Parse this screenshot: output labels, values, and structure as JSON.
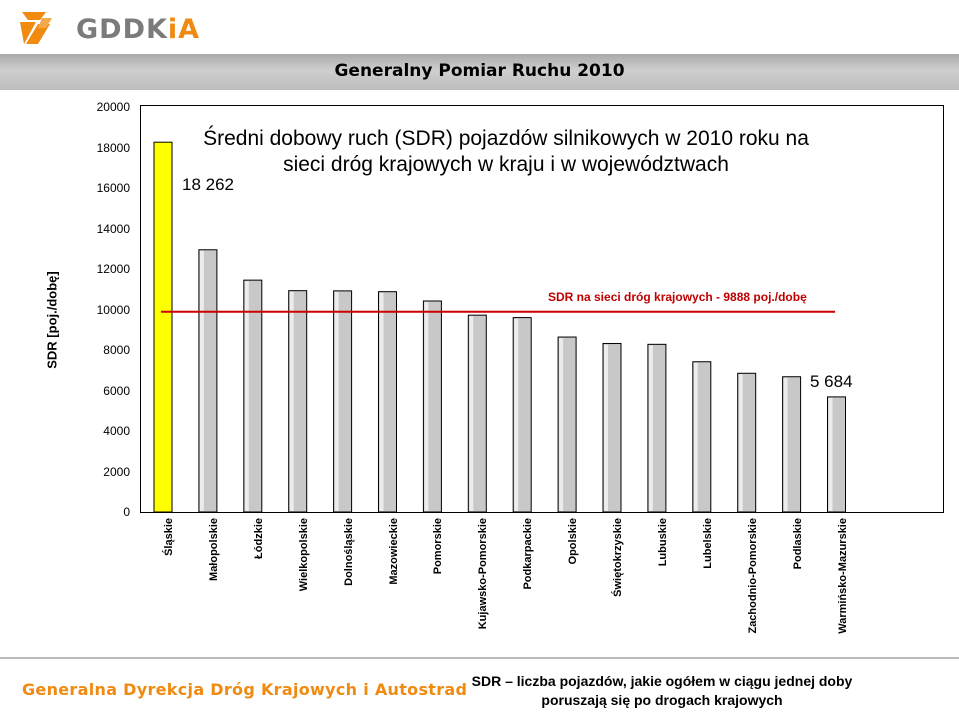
{
  "brand": {
    "name_part1": "GDDK",
    "name_part2": "iA",
    "colors": {
      "orange": "#f08a10",
      "gray": "#7b7b7b"
    }
  },
  "banner": {
    "title": "Generalny Pomiar Ruchu 2010"
  },
  "footer": {
    "left": "Generalna Dyrekcja Dróg Krajowych i Autostrad",
    "right_line1": "SDR – liczba pojazdów, jakie ogółem w ciągu jednej doby",
    "right_line2": "poruszają się po drogach krajowych"
  },
  "chart_data": {
    "type": "bar",
    "title_line1": "Średni dobowy ruch (SDR) pojazdów silnikowych w 2010 roku na",
    "title_line2": "sieci dróg krajowych w kraju i w województwach",
    "ylabel": "SDR [poj./dobę]",
    "xlabel": "",
    "ylim": [
      0,
      20000
    ],
    "yticks": [
      "0",
      "2000",
      "4000",
      "6000",
      "8000",
      "10000",
      "12000",
      "14000",
      "16000",
      "18000",
      "20000"
    ],
    "grid": false,
    "categories": [
      "Śląskie",
      "Małopolskie",
      "Łódzkie",
      "Wielkopolskie",
      "Dolnośląskie",
      "Mazowieckie",
      "Pomorskie",
      "Kujawsko-Pomorskie",
      "Podkarpackie",
      "Opolskie",
      "Świętokrzyskie",
      "Lubuskie",
      "Lubelskie",
      "Zachodnio-Pomorskie",
      "Podlaskie",
      "Warmińsko-Mazurskie"
    ],
    "values": [
      18262,
      12950,
      11450,
      10930,
      10920,
      10880,
      10420,
      9720,
      9600,
      8640,
      8320,
      8280,
      7420,
      6850,
      6680,
      5684
    ],
    "highlight_color": "#ffff00",
    "bar_color": "#c8c8c8",
    "reference_line": {
      "value": 9888,
      "label": "SDR na sieci dróg krajowych - 9888 poj./dobę",
      "color": "#cc0000"
    },
    "annotations": {
      "max_label": "18  262",
      "min_label": "5 684"
    }
  }
}
